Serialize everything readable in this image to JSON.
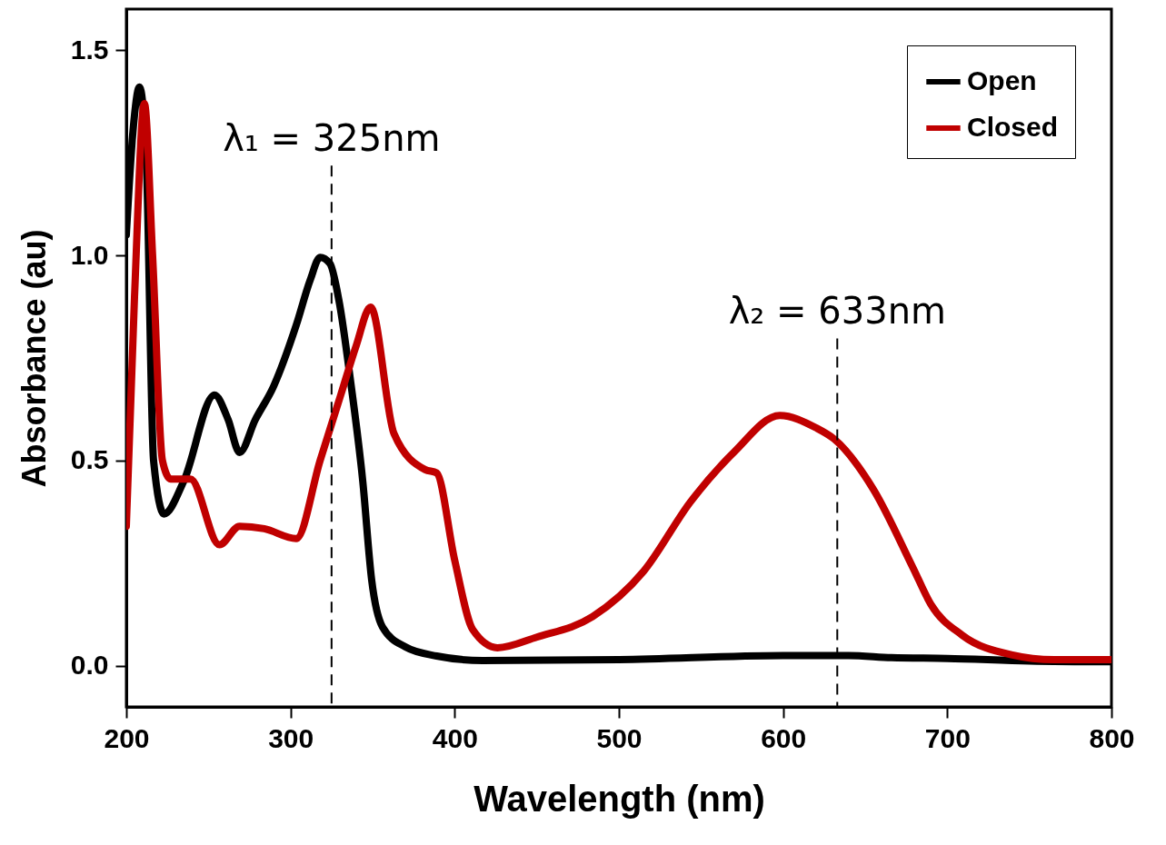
{
  "chart_data": {
    "type": "line",
    "xlabel": "Wavelength (nm)",
    "ylabel": "Absorbance (au)",
    "xlim": [
      200,
      800
    ],
    "ylim": [
      -0.1,
      1.6
    ],
    "xticks": [
      200,
      300,
      400,
      500,
      600,
      700,
      800
    ],
    "yticks": [
      {
        "value": 0,
        "label": "0.0"
      },
      {
        "value": 0.5,
        "label": "0.5"
      },
      {
        "value": 1,
        "label": "1.0"
      },
      {
        "value": 1.5,
        "label": "1.5"
      }
    ],
    "legend": "top right",
    "grid": false,
    "line_style": "solid",
    "marker": "none",
    "ref_lines": [
      {
        "axis": "x",
        "value": 325,
        "label": "λ₁ = 325nm",
        "line_style": "dashed"
      },
      {
        "axis": "x",
        "value": 633,
        "label": "λ₂ = 633nm",
        "line_style": "dashed"
      }
    ],
    "series": [
      {
        "name": "Open",
        "color": "#000000",
        "x": [
          200,
          204,
          208,
          212,
          216.6,
          223,
          235,
          253.7,
          262,
          269,
          278.6,
          289.6,
          303.5,
          312,
          318,
          324,
          329.5,
          336.7,
          344,
          349.4,
          356,
          370,
          389,
          417,
          500,
          600,
          640,
          666,
          700,
          750,
          800
        ],
        "values": [
          1.05,
          1.3,
          1.41,
          1.25,
          0.5,
          0.37,
          0.45,
          0.66,
          0.6,
          0.52,
          0.6,
          0.68,
          0.83,
          0.94,
          0.995,
          0.98,
          0.89,
          0.69,
          0.45,
          0.21,
          0.095,
          0.046,
          0.024,
          0.013,
          0.015,
          0.025,
          0.025,
          0.02,
          0.018,
          0.012,
          0.01
        ]
      },
      {
        "name": "Closed",
        "color": "#c00000",
        "x": [
          200,
          205,
          211,
          216,
          222,
          227,
          239,
          256.7,
          269,
          284,
          303.5,
          318,
          330.6,
          340,
          348.8,
          363,
          382,
          389,
          400,
          411,
          426,
          450,
          484,
          515,
          543.7,
          570,
          598,
          620,
          631,
          655,
          679,
          690,
          709,
          739,
          765,
          800
        ],
        "values": [
          0.34,
          0.9,
          1.37,
          1.0,
          0.5,
          0.455,
          0.455,
          0.295,
          0.34,
          0.334,
          0.31,
          0.5,
          0.66,
          0.78,
          0.874,
          0.566,
          0.478,
          0.47,
          0.257,
          0.088,
          0.044,
          0.07,
          0.12,
          0.23,
          0.4,
          0.52,
          0.61,
          0.58,
          0.553,
          0.43,
          0.24,
          0.15,
          0.075,
          0.027,
          0.015,
          0.015
        ]
      }
    ]
  }
}
